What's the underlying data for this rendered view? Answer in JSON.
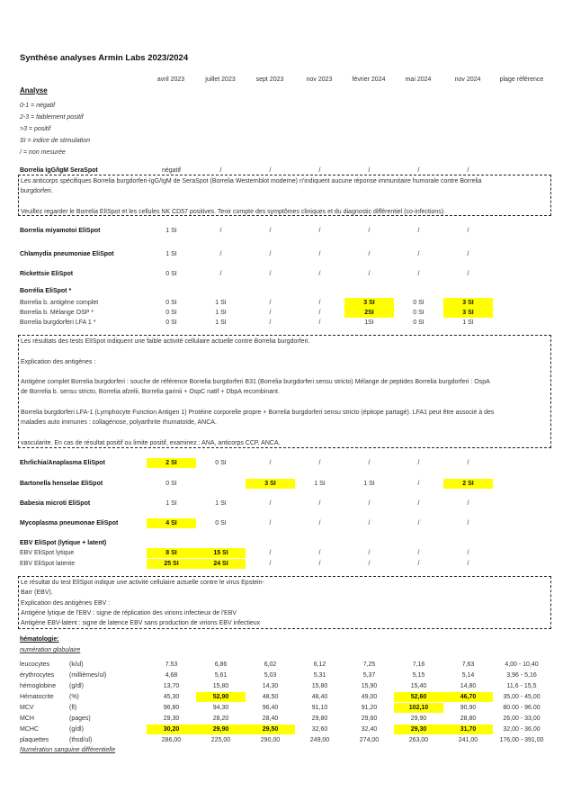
{
  "title": "Synthèse analyses Armin Labs 2023/2024",
  "columns": [
    "avril 2023",
    "juillet 2023",
    "sept 2023",
    "nov 2023",
    "février 2024",
    "mai 2024",
    "nov 2024",
    "plage référence"
  ],
  "analyse_heading": "Analyse",
  "legend": [
    "0-1 = négatif",
    "2-3 = faiblement positif",
    ">3 = positif",
    "SI = indice de stimulation",
    "/ = non mesurée"
  ],
  "highlight_color": "#ffff00",
  "items": [
    {
      "type": "row",
      "label": "Borrelia IgG/IgM SeraSpot",
      "bold": true,
      "cells": [
        {
          "v": "négatif"
        },
        {
          "v": "/"
        },
        {
          "v": "/"
        },
        {
          "v": "/"
        },
        {
          "v": "/"
        },
        {
          "v": "/"
        },
        {
          "v": "/"
        }
      ]
    },
    {
      "type": "box",
      "lines": [
        "Les anticorps spécifiques Borrelia burgdorferi-IgG/IgM de SeraSpot (Borrelia Westernblot moderne) n'indiquent aucune réponse immunitaire humorale contre Borrelia",
        "burgdorferi.",
        "",
        "Veuillez regarder le Borrelia ElISpot et les cellules NK CD57 positives. Tenir compte des symptômes cliniques et du diagnostic différentiel (co-infections)."
      ]
    },
    {
      "type": "row",
      "label": "Borrelia miyamotoi EliSpot",
      "bold": true,
      "cells": [
        {
          "v": "1 SI"
        },
        {
          "v": "/"
        },
        {
          "v": "/"
        },
        {
          "v": "/"
        },
        {
          "v": "/"
        },
        {
          "v": "/"
        },
        {
          "v": "/"
        }
      ]
    },
    {
      "type": "row",
      "label": "Chlamydia pneumoniae EliSpot",
      "bold": true,
      "cells": [
        {
          "v": "1 SI"
        },
        {
          "v": "/"
        },
        {
          "v": "/"
        },
        {
          "v": "/"
        },
        {
          "v": "/"
        },
        {
          "v": "/"
        },
        {
          "v": "/"
        }
      ]
    },
    {
      "type": "row",
      "label": "Rickettsie EliSpot",
      "bold": true,
      "cells": [
        {
          "v": "0 SI"
        },
        {
          "v": "/"
        },
        {
          "v": "/"
        },
        {
          "v": "/"
        },
        {
          "v": "/"
        },
        {
          "v": "/"
        },
        {
          "v": "/"
        }
      ]
    },
    {
      "type": "head",
      "label": "Borrélia EliSpot *"
    },
    {
      "type": "row",
      "label": "Borrelia b. antigène complet",
      "cells": [
        {
          "v": "0 SI"
        },
        {
          "v": "1 SI"
        },
        {
          "v": "/"
        },
        {
          "v": "/"
        },
        {
          "v": "3 SI",
          "hl": true
        },
        {
          "v": "0 SI"
        },
        {
          "v": "3 SI",
          "hl": true
        }
      ]
    },
    {
      "type": "row",
      "label": "Borrelia b. Mélange OSP *",
      "cells": [
        {
          "v": "0 SI"
        },
        {
          "v": "1 SI"
        },
        {
          "v": "/"
        },
        {
          "v": "/"
        },
        {
          "v": "2SI",
          "hl": true
        },
        {
          "v": "0 SI"
        },
        {
          "v": "3 SI",
          "hl": true
        }
      ]
    },
    {
      "type": "row",
      "label": "Borrelia burgdorferi LFA 1 *",
      "cells": [
        {
          "v": "0 SI"
        },
        {
          "v": "1 SI"
        },
        {
          "v": "/"
        },
        {
          "v": "/"
        },
        {
          "v": "1SI"
        },
        {
          "v": "0 SI"
        },
        {
          "v": "1 SI"
        }
      ]
    },
    {
      "type": "box",
      "lines": [
        "Les résultats des tests ElISpot indiquent une faible activité cellulaire actuelle contre Borrelia burgdorferi.",
        "",
        "Explication des antigènes :",
        "",
        "Antigène complet Borrelia burgdorferi : souche de référence Borrelia burgdorferi B31 (Borrelia burgdorferi sensu stricto) Mélange de peptides Borrelia burgdorferi : OspA",
        "de Borrelia b. sensu stricto, Borrelia afzelii, Borrelia garinii + OspC natif + DbpA recombinant.",
        "",
        "Borrelia burgdorferi LFA-1 (Lymphocyte Function Antigen 1) Protéine corporelle propre + Borrelia burgdorferi sensu stricto (épitope partagé). LFA1 peut être associé à des",
        "maladies auto immunes : collagénose, polyarthrite rhumatoïde, ANCA.",
        "",
        "vascularite. En cas de résultat positif ou limite positif, examinez : ANA, anticorps CCP, ANCA."
      ]
    },
    {
      "type": "row",
      "label": "Ehrlichia/Anaplasma EliSpot",
      "bold": true,
      "cells": [
        {
          "v": "2 SI",
          "hl": true
        },
        {
          "v": "0 SI"
        },
        {
          "v": "/"
        },
        {
          "v": "/"
        },
        {
          "v": "/"
        },
        {
          "v": "/"
        },
        {
          "v": "/"
        }
      ]
    },
    {
      "type": "row",
      "label": "Bartonella henselae EliSpot",
      "bold": true,
      "cells": [
        {
          "v": "0 SI"
        },
        {
          "v": ""
        },
        {
          "v": "3 SI",
          "hl": true
        },
        {
          "v": "1 SI"
        },
        {
          "v": "1 SI"
        },
        {
          "v": "/"
        },
        {
          "v": "2 SI",
          "hl": true
        }
      ]
    },
    {
      "type": "row",
      "label": "Babesia microti EliSpot",
      "bold": true,
      "cells": [
        {
          "v": "1 SI"
        },
        {
          "v": "1 SI"
        },
        {
          "v": "/"
        },
        {
          "v": "/"
        },
        {
          "v": "/"
        },
        {
          "v": "/"
        },
        {
          "v": "/"
        }
      ]
    },
    {
      "type": "row",
      "label": "Mycoplasma pneumonae EliSpot",
      "bold": true,
      "cells": [
        {
          "v": "4 SI",
          "hl": true
        },
        {
          "v": "0 SI"
        },
        {
          "v": "/"
        },
        {
          "v": "/"
        },
        {
          "v": "/"
        },
        {
          "v": "/"
        },
        {
          "v": "/"
        }
      ]
    },
    {
      "type": "head",
      "label": "EBV EliSpot (lytique + latent)"
    },
    {
      "type": "row",
      "label": "EBV EliSpot lytique",
      "cells": [
        {
          "v": "8 SI",
          "hl": true
        },
        {
          "v": "15 SI",
          "hl": true
        },
        {
          "v": "/"
        },
        {
          "v": "/"
        },
        {
          "v": "/"
        },
        {
          "v": "/"
        },
        {
          "v": "/"
        }
      ]
    },
    {
      "type": "row",
      "label": "EBV EliSpot latente",
      "cells": [
        {
          "v": "25 SI",
          "hl": true
        },
        {
          "v": "24 SI",
          "hl": true
        },
        {
          "v": "/"
        },
        {
          "v": "/"
        },
        {
          "v": "/"
        },
        {
          "v": "/"
        },
        {
          "v": "/"
        }
      ]
    },
    {
      "type": "box",
      "lines": [
        "Le résultat du test ElISpot indique une activité cellulaire actuelle contre le virus Epstein-",
        "Barr (EBV).",
        "Explication des antigènes EBV :",
        "Antigène lytique de l'EBV : signe de réplication des virions infectieux de l'EBV",
        "Antigène EBV-latent : signe de latence EBV sans production de virions EBV infectieux"
      ]
    },
    {
      "type": "head",
      "label": "hématologie:",
      "underline": true
    },
    {
      "type": "sub",
      "label": "numération globulaire"
    },
    {
      "type": "row",
      "label": "leucocytes",
      "unit": "(k/ul)",
      "cells": [
        {
          "v": "7.53"
        },
        {
          "v": "6,86"
        },
        {
          "v": "6,02"
        },
        {
          "v": "6,12"
        },
        {
          "v": "7,25"
        },
        {
          "v": "7,16"
        },
        {
          "v": "7,63"
        },
        {
          "v": "4,00 - 10,40"
        }
      ]
    },
    {
      "type": "row",
      "label": "érythrocytes",
      "unit": "(millièmes/ul)",
      "cells": [
        {
          "v": "4,68"
        },
        {
          "v": "5,61"
        },
        {
          "v": "5,03"
        },
        {
          "v": "5,31"
        },
        {
          "v": "5,37"
        },
        {
          "v": "5,15"
        },
        {
          "v": "5,14"
        },
        {
          "v": "3,96 - 5,16"
        }
      ]
    },
    {
      "type": "row",
      "label": "hémoglobine",
      "unit": "(g/dl)",
      "cells": [
        {
          "v": "13,70"
        },
        {
          "v": "15,80"
        },
        {
          "v": "14,30"
        },
        {
          "v": "15,80"
        },
        {
          "v": "15,90"
        },
        {
          "v": "15,40"
        },
        {
          "v": "14,80"
        },
        {
          "v": "11,6 - 15,5"
        }
      ]
    },
    {
      "type": "row",
      "label": "Hématocrite",
      "unit": "(%)",
      "cells": [
        {
          "v": "45,30"
        },
        {
          "v": "52,90",
          "hl": true
        },
        {
          "v": "48,50"
        },
        {
          "v": "48,40"
        },
        {
          "v": "49,00"
        },
        {
          "v": "52,60",
          "hl": true
        },
        {
          "v": "46,70",
          "hl": true
        },
        {
          "v": "35,00 - 45,00"
        }
      ]
    },
    {
      "type": "row",
      "label": "MCV",
      "unit": "(fl)",
      "cells": [
        {
          "v": "96,80"
        },
        {
          "v": "94,30"
        },
        {
          "v": "96,40"
        },
        {
          "v": "91,10"
        },
        {
          "v": "91,20"
        },
        {
          "v": "102,10",
          "hl": true
        },
        {
          "v": "90,90"
        },
        {
          "v": "80.00 - 96.00"
        }
      ]
    },
    {
      "type": "row",
      "label": "MCH",
      "unit": "(pages)",
      "cells": [
        {
          "v": "29,30"
        },
        {
          "v": "28,20"
        },
        {
          "v": "28,40"
        },
        {
          "v": "29,80"
        },
        {
          "v": "29,60"
        },
        {
          "v": "29,90"
        },
        {
          "v": "28,80"
        },
        {
          "v": "26,00 - 33,00"
        }
      ]
    },
    {
      "type": "row",
      "label": "MCHC",
      "unit": "(g/dl)",
      "cells": [
        {
          "v": "30,20",
          "hl": true
        },
        {
          "v": "29,90",
          "hl": true
        },
        {
          "v": "29,50",
          "hl": true
        },
        {
          "v": "32,60"
        },
        {
          "v": "32,40"
        },
        {
          "v": "29,30",
          "hl": true
        },
        {
          "v": "31,70",
          "hl": true
        },
        {
          "v": "32,00 - 36,00"
        }
      ]
    },
    {
      "type": "row",
      "label": "plaquettes",
      "unit": "(thsd/ul)",
      "cells": [
        {
          "v": "286,00"
        },
        {
          "v": "225,00"
        },
        {
          "v": "290,00"
        },
        {
          "v": "249,00"
        },
        {
          "v": "274,00"
        },
        {
          "v": "263,00"
        },
        {
          "v": "241,00"
        },
        {
          "v": "176,00 - 391,00"
        }
      ]
    },
    {
      "type": "sub",
      "label": "Numération sanguine différentielle"
    }
  ]
}
